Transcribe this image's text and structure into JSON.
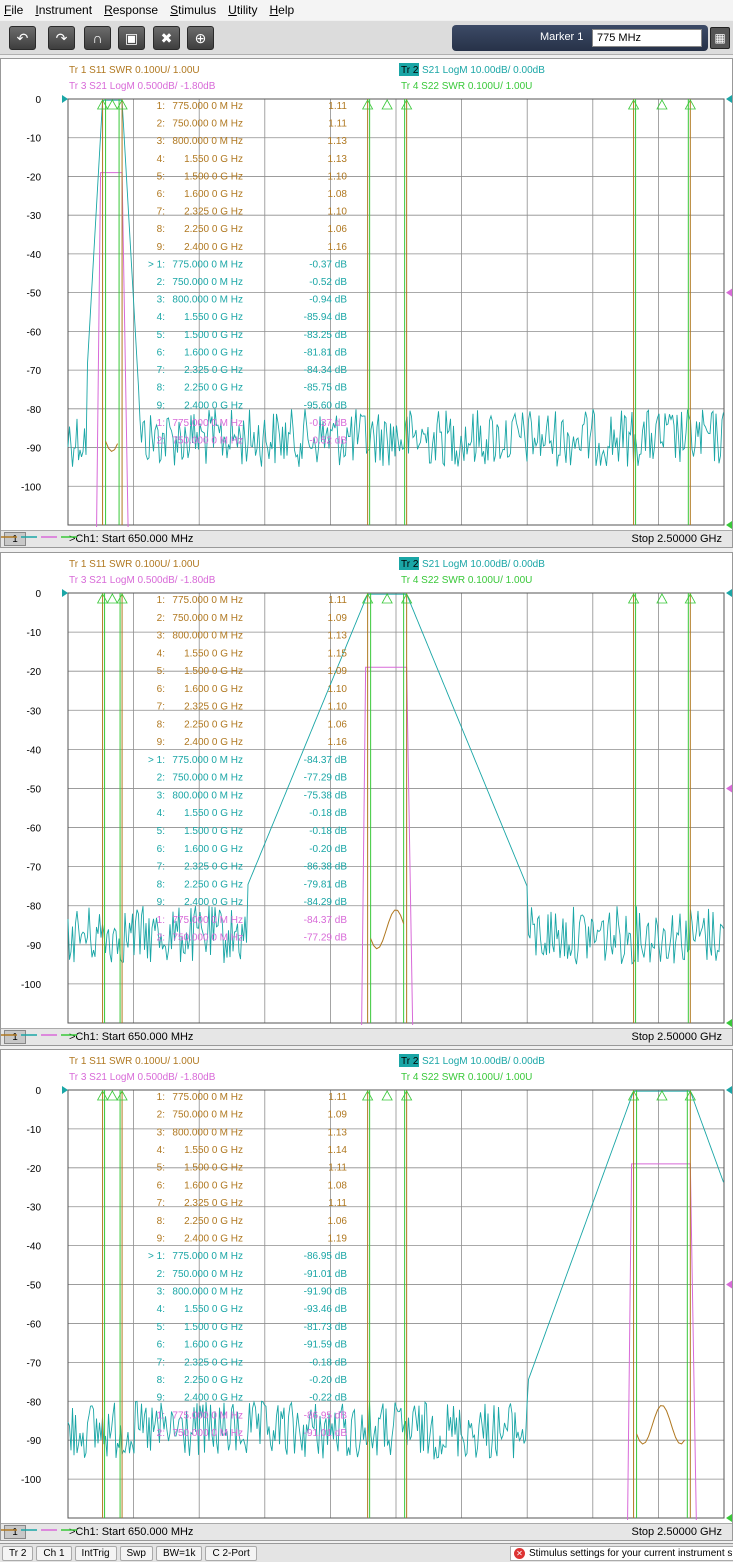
{
  "menu": [
    "File",
    "Instrument",
    "Response",
    "Stimulus",
    "Utility",
    "Help"
  ],
  "menu_mnemonic": [
    "F",
    "I",
    "R",
    "S",
    "U",
    "H"
  ],
  "toolbar": {
    "icons": [
      "undo-icon",
      "redo-icon",
      "marker-add-icon",
      "marker-search-icon",
      "delete-icon",
      "zoom-icon"
    ],
    "marker_label": "Marker 1",
    "marker_value": "775 MHz",
    "calc_icon": "calculator-icon"
  },
  "colors": {
    "tr1": "#b07820",
    "tr2": "#1aa6a6",
    "tr3": "#d86ad8",
    "tr4": "#39c839",
    "grid": "#8e8e8e",
    "bg": "#ffffff"
  },
  "panels": [
    {
      "legend": {
        "tr1": "Tr 1  S11 SWR 0.100U/  1.00U",
        "tr2_badge": "Tr 2",
        "tr2": "S21 LogM 10.00dB/  0.00dB",
        "tr3": "Tr 3  S21 LogM 0.500dB/  -1.80dB",
        "tr4": "Tr 4  S22 SWR 0.100U/  1.00U"
      },
      "markers": [
        [
          "1:",
          "775.000 0 M Hz",
          "1.11",
          "tr1"
        ],
        [
          "2:",
          "750.000 0 M Hz",
          "1.11",
          "tr1"
        ],
        [
          "3:",
          "800.000 0 M Hz",
          "1.13",
          "tr1"
        ],
        [
          "4:",
          "1.550 0 G Hz",
          "1.13",
          "tr1"
        ],
        [
          "5:",
          "1.500 0 G Hz",
          "1.10",
          "tr1"
        ],
        [
          "6:",
          "1.600 0 G Hz",
          "1.08",
          "tr1"
        ],
        [
          "7:",
          "2.325 0 G Hz",
          "1.10",
          "tr1"
        ],
        [
          "8:",
          "2.250 0 G Hz",
          "1.06",
          "tr1"
        ],
        [
          "9:",
          "2.400 0 G Hz",
          "1.16",
          "tr1"
        ],
        [
          "> 1:",
          "775.000 0 M Hz",
          "-0.37 dB",
          "tr2"
        ],
        [
          "2:",
          "750.000 0 M Hz",
          "-0.52 dB",
          "tr2"
        ],
        [
          "3:",
          "800.000 0 M Hz",
          "-0.94 dB",
          "tr2"
        ],
        [
          "4:",
          "1.550 0 G Hz",
          "-85.94 dB",
          "tr2"
        ],
        [
          "5:",
          "1.500 0 G Hz",
          "-83.25 dB",
          "tr2"
        ],
        [
          "6:",
          "1.600 0 G Hz",
          "-81.81 dB",
          "tr2"
        ],
        [
          "7:",
          "2.325 0 G Hz",
          "-84.34 dB",
          "tr2"
        ],
        [
          "8:",
          "2.250 0 G Hz",
          "-85.75 dB",
          "tr2"
        ],
        [
          "9:",
          "2.400 0 G Hz",
          "-95.60 dB",
          "tr2"
        ],
        [
          "1:",
          "775.000 0 M Hz",
          "-0.37 dB",
          "tr3"
        ],
        [
          "2:",
          "750.000 0 M Hz",
          "-0.52 dB",
          "tr3"
        ]
      ],
      "start": ">Ch1: Start  650.000 MHz",
      "stop": "Stop  2.50000 GHz",
      "ch": "1",
      "passband": "low"
    },
    {
      "legend": {
        "tr1": "Tr 1  S11 SWR 0.100U/  1.00U",
        "tr2_badge": "Tr 2",
        "tr2": "S21 LogM 10.00dB/  0.00dB",
        "tr3": "Tr 3  S21 LogM 0.500dB/  -1.80dB",
        "tr4": "Tr 4  S22 SWR 0.100U/  1.00U"
      },
      "markers": [
        [
          "1:",
          "775.000 0 M Hz",
          "1.11",
          "tr1"
        ],
        [
          "2:",
          "750.000 0 M Hz",
          "1.09",
          "tr1"
        ],
        [
          "3:",
          "800.000 0 M Hz",
          "1.13",
          "tr1"
        ],
        [
          "4:",
          "1.550 0 G Hz",
          "1.15",
          "tr1"
        ],
        [
          "5:",
          "1.500 0 G Hz",
          "1.09",
          "tr1"
        ],
        [
          "6:",
          "1.600 0 G Hz",
          "1.10",
          "tr1"
        ],
        [
          "7:",
          "2.325 0 G Hz",
          "1.10",
          "tr1"
        ],
        [
          "8:",
          "2.250 0 G Hz",
          "1.06",
          "tr1"
        ],
        [
          "9:",
          "2.400 0 G Hz",
          "1.16",
          "tr1"
        ],
        [
          "> 1:",
          "775.000 0 M Hz",
          "-84.37 dB",
          "tr2"
        ],
        [
          "2:",
          "750.000 0 M Hz",
          "-77.29 dB",
          "tr2"
        ],
        [
          "3:",
          "800.000 0 M Hz",
          "-75.38 dB",
          "tr2"
        ],
        [
          "4:",
          "1.550 0 G Hz",
          "-0.18 dB",
          "tr2"
        ],
        [
          "5:",
          "1.500 0 G Hz",
          "-0.18 dB",
          "tr2"
        ],
        [
          "6:",
          "1.600 0 G Hz",
          "-0.20 dB",
          "tr2"
        ],
        [
          "7:",
          "2.325 0 G Hz",
          "-86.38 dB",
          "tr2"
        ],
        [
          "8:",
          "2.250 0 G Hz",
          "-79.81 dB",
          "tr2"
        ],
        [
          "9:",
          "2.400 0 G Hz",
          "-84.29 dB",
          "tr2"
        ],
        [
          "1:",
          "775.000 0 M Hz",
          "-84.37 dB",
          "tr3"
        ],
        [
          "2:",
          "750.000 0 M Hz",
          "-77.29 dB",
          "tr3"
        ]
      ],
      "start": ">Ch1: Start  650.000 MHz",
      "stop": "Stop  2.50000 GHz",
      "ch": "1",
      "passband": "mid"
    },
    {
      "legend": {
        "tr1": "Tr 1  S11 SWR 0.100U/  1.00U",
        "tr2_badge": "Tr 2",
        "tr2": "S21 LogM 10.00dB/  0.00dB",
        "tr3": "Tr 3  S21 LogM 0.500dB/  -1.80dB",
        "tr4": "Tr 4  S22 SWR 0.100U/  1.00U"
      },
      "markers": [
        [
          "1:",
          "775.000 0 M Hz",
          "1.11",
          "tr1"
        ],
        [
          "2:",
          "750.000 0 M Hz",
          "1.09",
          "tr1"
        ],
        [
          "3:",
          "800.000 0 M Hz",
          "1.13",
          "tr1"
        ],
        [
          "4:",
          "1.550 0 G Hz",
          "1.14",
          "tr1"
        ],
        [
          "5:",
          "1.500 0 G Hz",
          "1.11",
          "tr1"
        ],
        [
          "6:",
          "1.600 0 G Hz",
          "1.08",
          "tr1"
        ],
        [
          "7:",
          "2.325 0 G Hz",
          "1.11",
          "tr1"
        ],
        [
          "8:",
          "2.250 0 G Hz",
          "1.06",
          "tr1"
        ],
        [
          "9:",
          "2.400 0 G Hz",
          "1.19",
          "tr1"
        ],
        [
          "> 1:",
          "775.000 0 M Hz",
          "-86.95 dB",
          "tr2"
        ],
        [
          "2:",
          "750.000 0 M Hz",
          "-91.01 dB",
          "tr2"
        ],
        [
          "3:",
          "800.000 0 M Hz",
          "-91.90 dB",
          "tr2"
        ],
        [
          "4:",
          "1.550 0 G Hz",
          "-93.46 dB",
          "tr2"
        ],
        [
          "5:",
          "1.500 0 G Hz",
          "-81.73 dB",
          "tr2"
        ],
        [
          "6:",
          "1.600 0 G Hz",
          "-91.59 dB",
          "tr2"
        ],
        [
          "7:",
          "2.325 0 G Hz",
          "-0.18 dB",
          "tr2"
        ],
        [
          "8:",
          "2.250 0 G Hz",
          "-0.20 dB",
          "tr2"
        ],
        [
          "9:",
          "2.400 0 G Hz",
          "-0.22 dB",
          "tr2"
        ],
        [
          "1:",
          "775.000 0 M Hz",
          "-86.95 dB",
          "tr3"
        ],
        [
          "2:",
          "750.000 0 M Hz",
          "-91.01 dB",
          "tr3"
        ]
      ],
      "start": ">Ch1: Start  650.000 MHz",
      "stop": "Stop  2.50000 GHz",
      "ch": "1",
      "passband": "high"
    }
  ],
  "y_ticks": [
    "0",
    "-10",
    "-20",
    "-30",
    "-40",
    "-50",
    "-60",
    "-70",
    "-80",
    "-90",
    "-100"
  ],
  "status": [
    "Tr 2",
    "Ch 1",
    "IntTrig",
    "Swp",
    "BW=1k",
    "C  2-Port"
  ],
  "status_message": "Stimulus settings for your current instrument s"
}
